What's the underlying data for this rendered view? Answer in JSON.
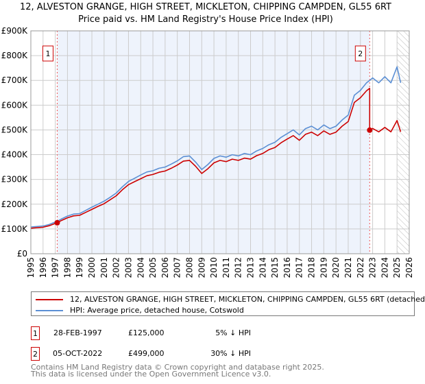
{
  "title": "12, ALVESTON GRANGE, HIGH STREET, MICKLETON, CHIPPING CAMPDEN, GL55 6RT",
  "subtitle": "Price paid vs. HM Land Registry's House Price Index (HPI)",
  "chart_data": {
    "type": "line",
    "title": "12, ALVESTON GRANGE, HIGH STREET, MICKLETON, CHIPPING CAMPDEN, GL55 6RT",
    "subtitle": "Price paid vs. HM Land Registry's House Price Index (HPI)",
    "xlim": [
      1995,
      2026
    ],
    "ylim": [
      0,
      900000
    ],
    "x_ticks": [
      "1995",
      "1996",
      "1997",
      "1998",
      "1999",
      "2000",
      "2001",
      "2002",
      "2003",
      "2004",
      "2005",
      "2006",
      "2007",
      "2008",
      "2009",
      "2010",
      "2011",
      "2012",
      "2013",
      "2014",
      "2015",
      "2016",
      "2017",
      "2018",
      "2019",
      "2020",
      "2021",
      "2022",
      "2023",
      "2024",
      "2025",
      "2026"
    ],
    "y_ticks": [
      {
        "v": 0,
        "label": "£0"
      },
      {
        "v": 100000,
        "label": "£100K"
      },
      {
        "v": 200000,
        "label": "£200K"
      },
      {
        "v": 300000,
        "label": "£300K"
      },
      {
        "v": 400000,
        "label": "£400K"
      },
      {
        "v": 500000,
        "label": "£500K"
      },
      {
        "v": 600000,
        "label": "£600K"
      },
      {
        "v": 700000,
        "label": "£700K"
      },
      {
        "v": 800000,
        "label": "£800K"
      },
      {
        "v": 900000,
        "label": "£900K"
      }
    ],
    "grid": true,
    "shaded_range": [
      1997.16,
      2022.76
    ],
    "hatched_from": 2025.0,
    "series": [
      {
        "name": "12, ALVESTON GRANGE, HIGH STREET, MICKLETON, CHIPPING CAMPDEN, GL55 6RT (detached",
        "color": "#cc0000",
        "x": [
          1995,
          1995.5,
          1996,
          1996.5,
          1997,
          1997.16,
          1997.5,
          1998,
          1998.5,
          1999,
          1999.5,
          2000,
          2000.5,
          2001,
          2001.5,
          2002,
          2002.5,
          2003,
          2003.5,
          2004,
          2004.5,
          2005,
          2005.5,
          2006,
          2006.5,
          2007,
          2007.5,
          2008,
          2008.5,
          2009,
          2009.5,
          2010,
          2010.5,
          2011,
          2011.5,
          2012,
          2012.5,
          2013,
          2013.5,
          2014,
          2014.5,
          2015,
          2015.5,
          2016,
          2016.5,
          2017,
          2017.5,
          2018,
          2018.5,
          2019,
          2019.5,
          2020,
          2020.5,
          2021,
          2021.5,
          2022,
          2022.5,
          2022.76,
          2022.76,
          2023,
          2023.5,
          2024,
          2024.5,
          2025,
          2025.3
        ],
        "y": [
          103,
          105,
          107,
          113,
          122,
          125,
          134,
          145,
          153,
          155,
          167,
          179,
          191,
          202,
          218,
          234,
          258,
          279,
          291,
          303,
          315,
          320,
          329,
          334,
          345,
          358,
          374,
          377,
          353,
          324,
          343,
          367,
          377,
          372,
          382,
          377,
          386,
          382,
          396,
          405,
          420,
          429,
          448,
          463,
          477,
          458,
          482,
          491,
          477,
          496,
          482,
          491,
          515,
          534,
          611,
          630,
          658,
          668,
          499,
          506,
          492,
          510,
          492,
          538,
          492
        ]
      },
      {
        "name": "HPI: Average price, detached house, Cotswold",
        "color": "#5b8fd4",
        "x": [
          1995,
          1995.5,
          1996,
          1996.5,
          1997,
          1997.16,
          1997.5,
          1998,
          1998.5,
          1999,
          1999.5,
          2000,
          2000.5,
          2001,
          2001.5,
          2002,
          2002.5,
          2003,
          2003.5,
          2004,
          2004.5,
          2005,
          2005.5,
          2006,
          2006.5,
          2007,
          2007.5,
          2008,
          2008.5,
          2009,
          2009.5,
          2010,
          2010.5,
          2011,
          2011.5,
          2012,
          2012.5,
          2013,
          2013.5,
          2014,
          2014.5,
          2015,
          2015.5,
          2016,
          2016.5,
          2017,
          2017.5,
          2018,
          2018.5,
          2019,
          2019.5,
          2020,
          2020.5,
          2021,
          2021.5,
          2022,
          2022.5,
          2022.76,
          2023,
          2023.5,
          2024,
          2024.5,
          2025,
          2025.3
        ],
        "y": [
          108,
          110,
          112,
          118,
          128,
          131,
          140,
          152,
          160,
          162,
          175,
          188,
          200,
          212,
          228,
          245,
          270,
          292,
          305,
          318,
          330,
          335,
          345,
          350,
          362,
          375,
          392,
          395,
          370,
          340,
          360,
          385,
          395,
          390,
          400,
          395,
          405,
          400,
          415,
          425,
          440,
          450,
          470,
          485,
          500,
          480,
          505,
          515,
          500,
          520,
          505,
          515,
          540,
          560,
          640,
          660,
          690,
          700,
          710,
          690,
          715,
          690,
          755,
          690
        ]
      }
    ],
    "y_units": "thousands GBP",
    "annotations": [
      {
        "label": "1",
        "x": 1997.16,
        "y": 125
      },
      {
        "label": "2",
        "x": 2022.76,
        "y": 499
      }
    ]
  },
  "legend": [
    {
      "label": "12, ALVESTON GRANGE, HIGH STREET, MICKLETON, CHIPPING CAMPDEN, GL55 6RT (detached",
      "color": "#cc0000"
    },
    {
      "label": "HPI: Average price, detached house, Cotswold",
      "color": "#5b8fd4"
    }
  ],
  "transactions": [
    {
      "num": "1",
      "date": "28-FEB-1997",
      "price": "£125,000",
      "hpi": "5% ↓ HPI"
    },
    {
      "num": "2",
      "date": "05-OCT-2022",
      "price": "£499,000",
      "hpi": "30% ↓ HPI"
    }
  ],
  "footer": [
    "Contains HM Land Registry data © Crown copyright and database right 2025.",
    "This data is licensed under the Open Government Licence v3.0."
  ]
}
